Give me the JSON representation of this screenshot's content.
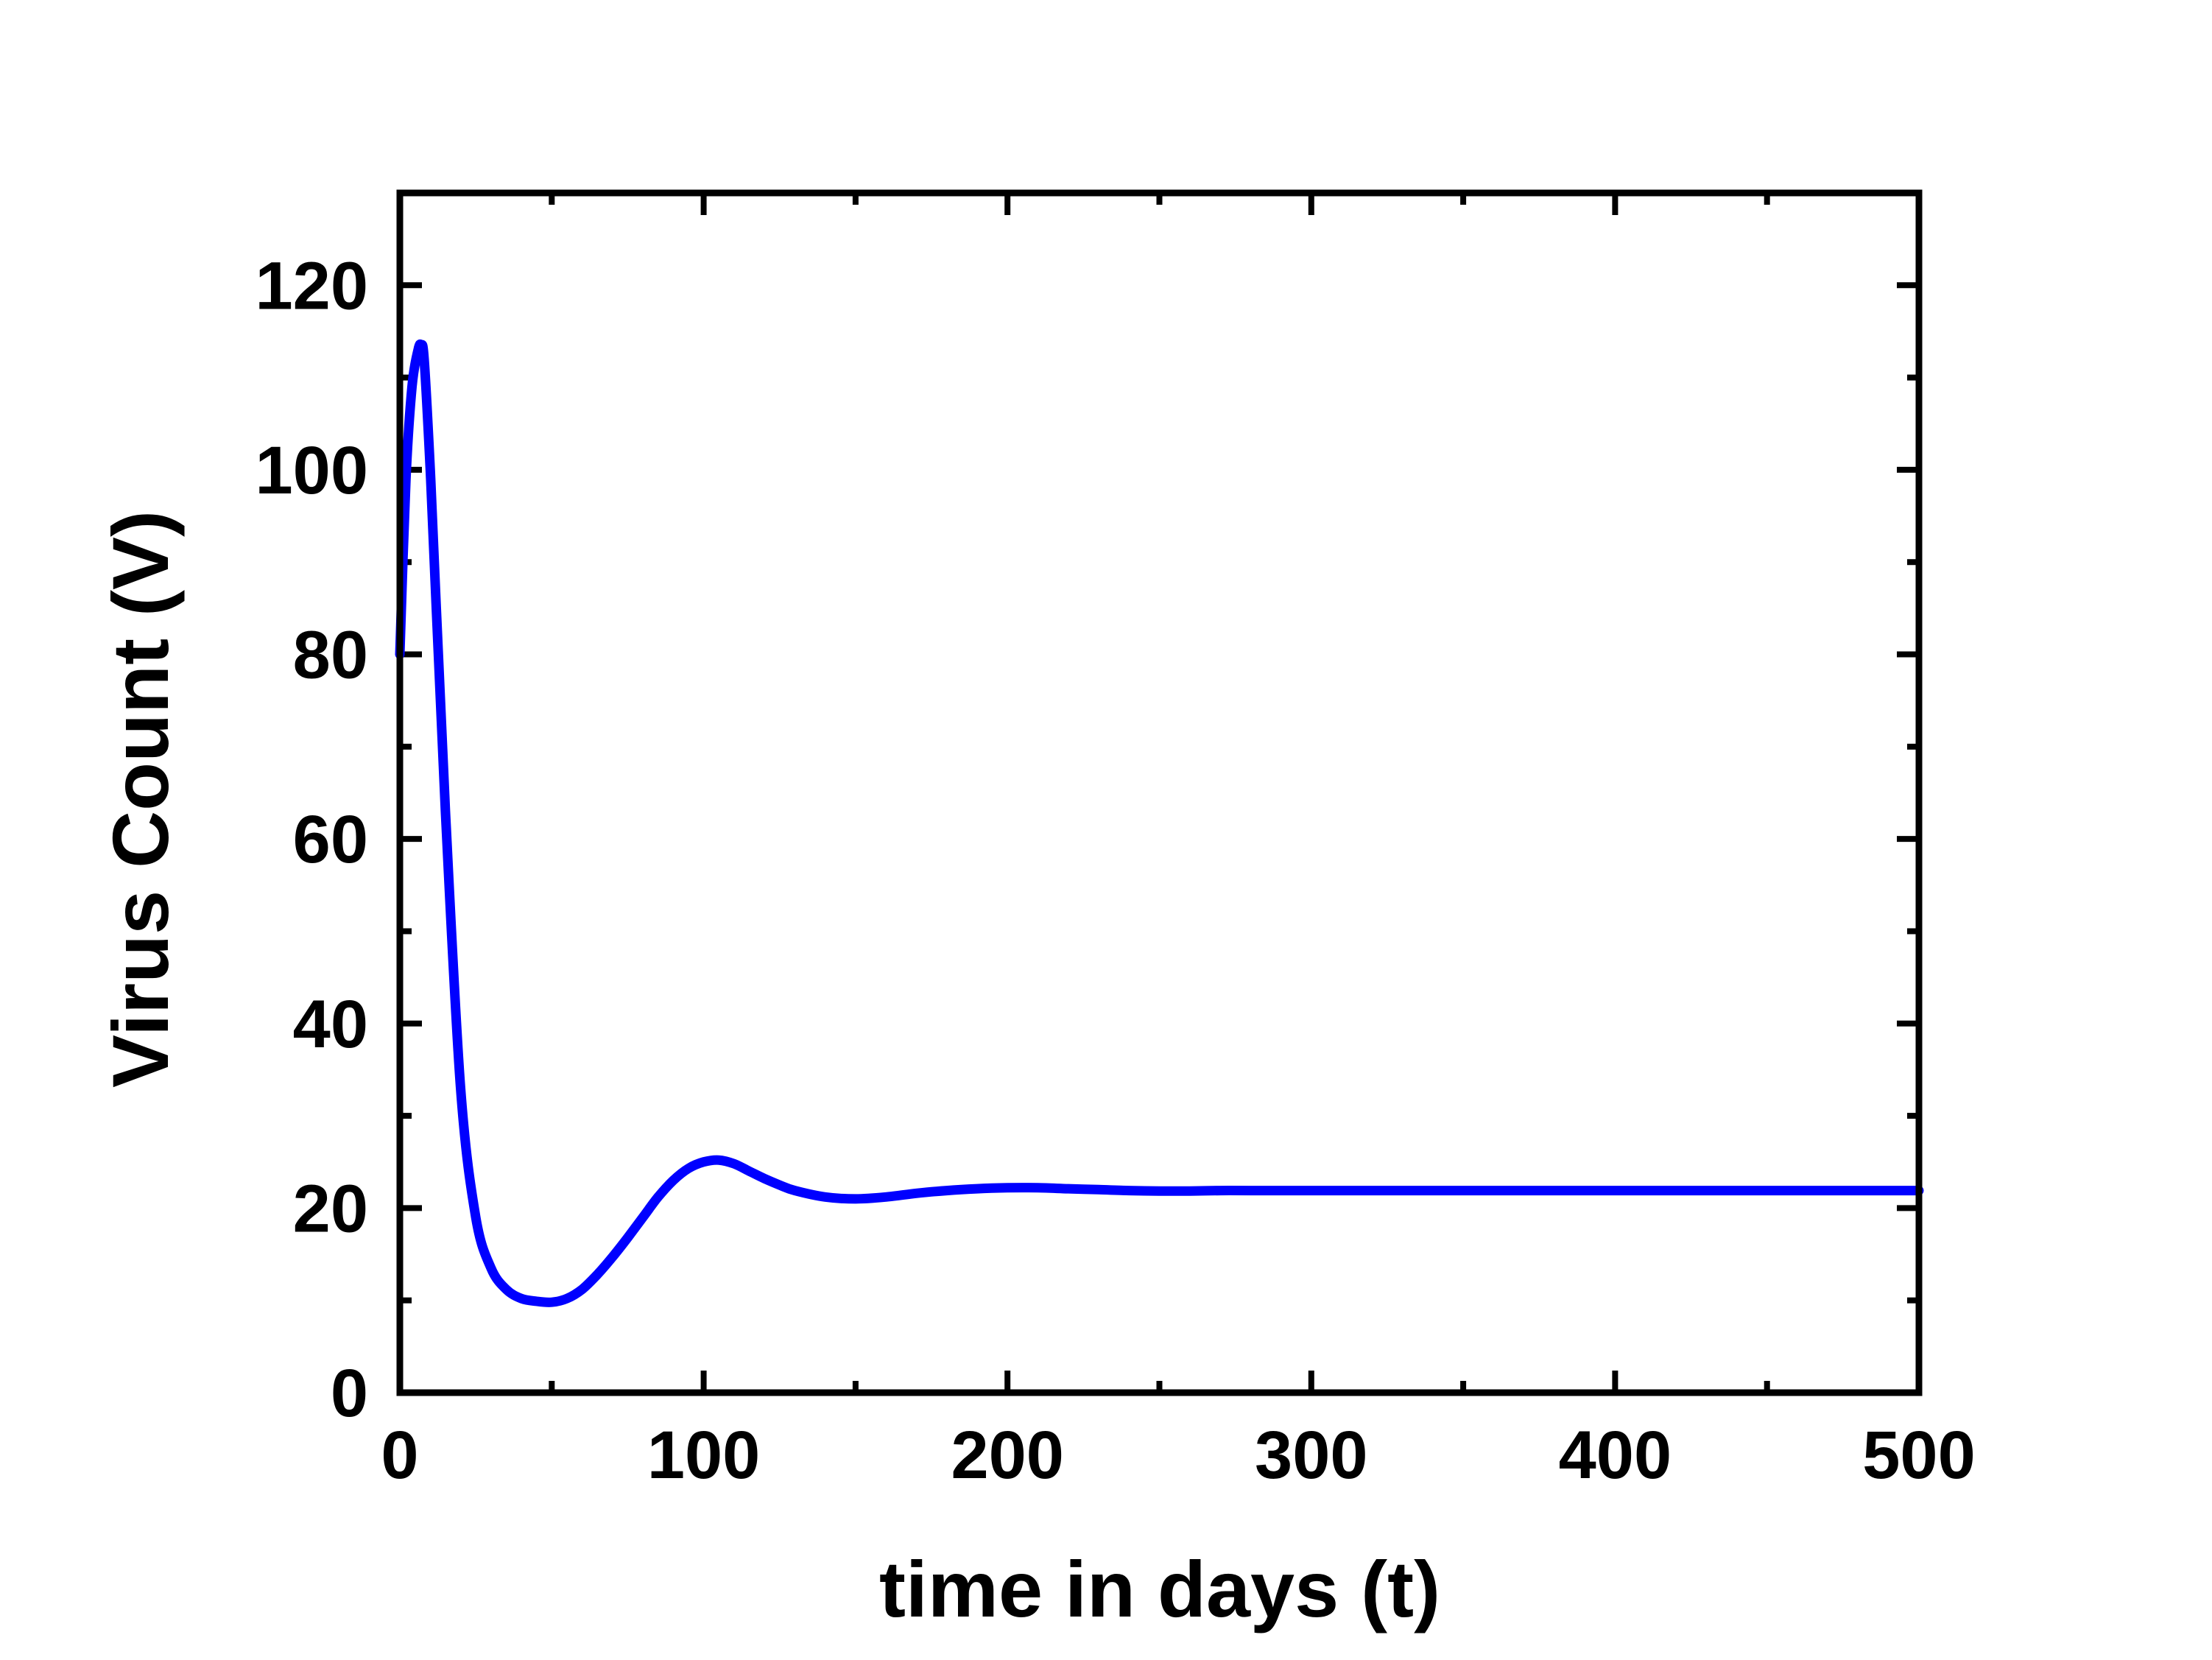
{
  "chart_data": {
    "type": "line",
    "title": "",
    "xlabel": "time in days (t)",
    "ylabel": "Virus Count (V)",
    "xlim": [
      0,
      500
    ],
    "ylim": [
      0,
      130
    ],
    "xticks": [
      0,
      100,
      200,
      300,
      400,
      500
    ],
    "xtick_labels": [
      "0",
      "100",
      "200",
      "300",
      "400",
      "500"
    ],
    "yticks": [
      0,
      20,
      40,
      60,
      80,
      100,
      120
    ],
    "ytick_labels": [
      "0",
      "20",
      "40",
      "60",
      "80",
      "100",
      "120"
    ],
    "x_minor_step": 50,
    "y_minor_step": 10,
    "grid": false,
    "legend": "none",
    "line_color": "#0000ff",
    "series": [
      {
        "x": [
          0,
          2,
          4,
          6,
          7,
          8,
          10,
          12,
          15,
          20,
          25,
          30,
          35,
          40,
          45,
          50,
          55,
          60,
          65,
          70,
          75,
          80,
          85,
          90,
          95,
          100,
          105,
          110,
          115,
          120,
          125,
          130,
          140,
          150,
          160,
          170,
          180,
          190,
          200,
          210,
          220,
          230,
          240,
          250,
          260,
          270,
          280,
          300,
          350,
          400,
          450,
          500
        ],
        "y": [
          80,
          99,
          109,
          113,
          113.5,
          112,
          100,
          85,
          63,
          33,
          19,
          13.5,
          11.2,
          10.2,
          9.9,
          9.8,
          10.2,
          11.2,
          12.8,
          14.7,
          16.8,
          19.0,
          21.2,
          23.0,
          24.3,
          25.0,
          25.2,
          24.8,
          24.0,
          23.2,
          22.5,
          21.9,
          21.2,
          21.0,
          21.2,
          21.6,
          21.9,
          22.1,
          22.2,
          22.2,
          22.1,
          22.0,
          21.9,
          21.85,
          21.85,
          21.9,
          21.9,
          21.9,
          21.9,
          21.9,
          21.9,
          21.9
        ]
      }
    ]
  }
}
